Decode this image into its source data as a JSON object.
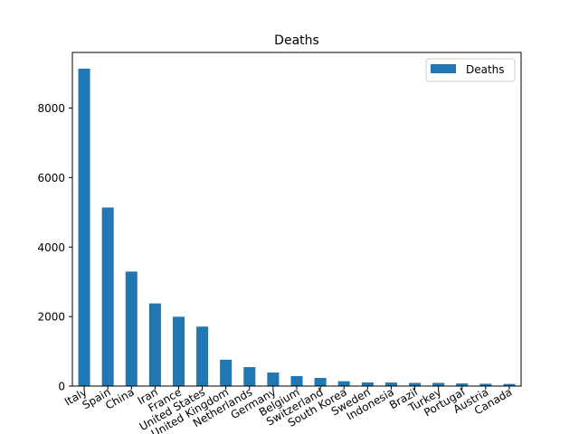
{
  "chart_data": {
    "type": "bar",
    "title": "Deaths",
    "xlabel": "",
    "ylabel": "",
    "categories": [
      "Italy",
      "Spain",
      "China",
      "Iran",
      "France",
      "United States",
      "United Kingdom",
      "Netherlands",
      "Germany",
      "Belgium",
      "Switzerland",
      "South Korea",
      "Sweden",
      "Indonesia",
      "Brazil",
      "Turkey",
      "Portugal",
      "Austria",
      "Canada"
    ],
    "series": [
      {
        "name": "Deaths",
        "color": "#1f77b4",
        "values": [
          9134,
          5138,
          3295,
          2378,
          1995,
          1711,
          759,
          546,
          389,
          289,
          235,
          139,
          105,
          102,
          92,
          92,
          76,
          68,
          61
        ]
      }
    ],
    "ylim": [
      0,
      9600
    ],
    "yticks": [
      0,
      2000,
      4000,
      6000,
      8000
    ],
    "legend": {
      "position": "top-right",
      "entries": [
        "Deaths"
      ]
    },
    "grid": false
  }
}
